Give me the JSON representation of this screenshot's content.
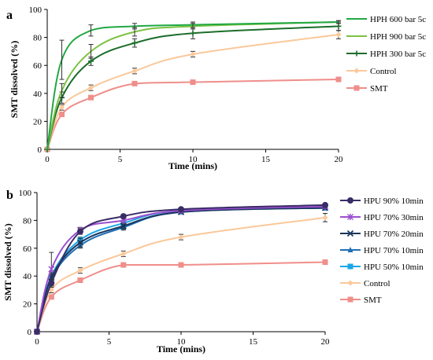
{
  "chart_data": [
    {
      "panel_label": "a",
      "type": "line",
      "xlabel": "Time (mins)",
      "ylabel": "SMT dissolved (%)",
      "xlim": [
        0,
        20
      ],
      "ylim": [
        0,
        100
      ],
      "xticks": [
        0,
        5,
        10,
        15,
        20
      ],
      "yticks": [
        0,
        20,
        40,
        60,
        80,
        100
      ],
      "grid": false,
      "legend_position": "right",
      "series": [
        {
          "name": "HPH 600 bar 5c",
          "color": "#21a844",
          "marker": "none",
          "x": [
            0,
            1,
            3,
            6,
            10,
            20
          ],
          "y": [
            0,
            64,
            85,
            88,
            89,
            91
          ],
          "err": [
            0,
            14,
            4,
            2,
            2,
            1
          ]
        },
        {
          "name": "HPH 900 bar 5c",
          "color": "#7cc242",
          "marker": "none",
          "x": [
            0,
            1,
            3,
            6,
            10,
            20
          ],
          "y": [
            0,
            42,
            70,
            84,
            88,
            91
          ],
          "err": [
            0,
            5,
            5,
            3,
            2,
            1
          ]
        },
        {
          "name": "HPH 300 bar 5c",
          "color": "#1b6d2a",
          "marker": "plus",
          "x": [
            0,
            1,
            3,
            6,
            10,
            20
          ],
          "y": [
            0,
            37,
            63,
            76,
            83,
            88
          ],
          "err": [
            0,
            4,
            3,
            3,
            4,
            3
          ]
        },
        {
          "name": "Control",
          "color": "#fbc89a",
          "marker": "diamond",
          "x": [
            0,
            1,
            3,
            6,
            10,
            20
          ],
          "y": [
            0,
            30,
            44,
            56,
            68,
            82
          ],
          "err": [
            0,
            2,
            2,
            2,
            2,
            3
          ]
        },
        {
          "name": "SMT",
          "color": "#ef8e8a",
          "marker": "square",
          "x": [
            0,
            1,
            3,
            6,
            10,
            20
          ],
          "y": [
            0,
            25,
            37,
            47,
            48,
            50
          ],
          "err": [
            0,
            0,
            0,
            0,
            0,
            0
          ]
        }
      ]
    },
    {
      "panel_label": "b",
      "type": "line",
      "xlabel": "Time (mins)",
      "ylabel": "SMT dissolved (%)",
      "xlim": [
        0,
        20
      ],
      "ylim": [
        0,
        100
      ],
      "xticks": [
        0,
        5,
        10,
        15,
        20
      ],
      "yticks": [
        0,
        20,
        40,
        60,
        80,
        100
      ],
      "grid": false,
      "legend_position": "right",
      "series": [
        {
          "name": "HPU 90% 10min",
          "color": "#3a2d66",
          "marker": "circle",
          "x": [
            0,
            1,
            3,
            6,
            10,
            20
          ],
          "y": [
            0,
            35,
            72,
            83,
            88,
            91
          ],
          "err": [
            0,
            3,
            2,
            1,
            1,
            1
          ]
        },
        {
          "name": "HPU 70% 30min",
          "color": "#9b4fd1",
          "marker": "star",
          "x": [
            0,
            1,
            3,
            6,
            10,
            20
          ],
          "y": [
            0,
            45,
            73,
            80,
            87,
            90
          ],
          "err": [
            0,
            12,
            2,
            2,
            1,
            1
          ]
        },
        {
          "name": "HPU 70% 20min",
          "color": "#17365d",
          "marker": "cross",
          "x": [
            0,
            1,
            3,
            6,
            10,
            20
          ],
          "y": [
            0,
            39,
            64,
            76,
            86,
            89
          ],
          "err": [
            0,
            3,
            3,
            2,
            1,
            1
          ]
        },
        {
          "name": "HPU 70% 10min",
          "color": "#1f6fb5",
          "marker": "triangle",
          "x": [
            0,
            1,
            3,
            6,
            10,
            20
          ],
          "y": [
            0,
            38,
            62,
            75,
            86,
            89
          ],
          "err": [
            0,
            3,
            2,
            2,
            1,
            1
          ]
        },
        {
          "name": "HPU 50% 10min",
          "color": "#1aa7e6",
          "marker": "square",
          "x": [
            0,
            1,
            3,
            6,
            10,
            20
          ],
          "y": [
            0,
            40,
            66,
            78,
            87,
            89
          ],
          "err": [
            0,
            3,
            2,
            2,
            1,
            1
          ]
        },
        {
          "name": "Control",
          "color": "#fbc89a",
          "marker": "diamond",
          "x": [
            0,
            1,
            3,
            6,
            10,
            20
          ],
          "y": [
            0,
            30,
            44,
            56,
            68,
            82
          ],
          "err": [
            0,
            2,
            2,
            2,
            2,
            3
          ]
        },
        {
          "name": "SMT",
          "color": "#ef8e8a",
          "marker": "square",
          "x": [
            0,
            1,
            3,
            6,
            10,
            20
          ],
          "y": [
            0,
            25,
            37,
            48,
            48,
            50
          ],
          "err": [
            0,
            0,
            0,
            0,
            0,
            0
          ]
        }
      ]
    }
  ]
}
